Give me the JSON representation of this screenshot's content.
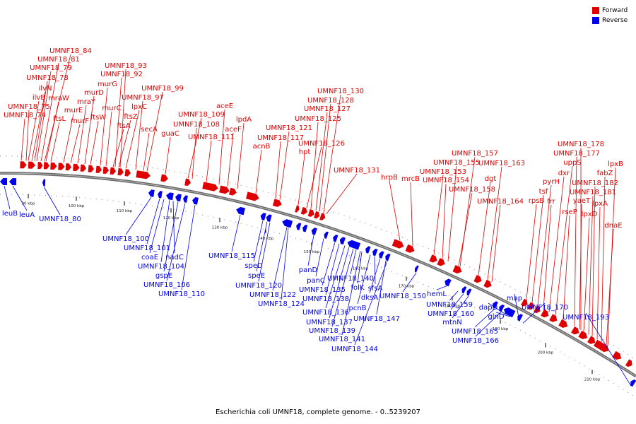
{
  "caption": "Escherichia coli UMNF18, complete genome. - 0..5239207",
  "legend": {
    "forward": {
      "label": "Forward",
      "color": "#e00000"
    },
    "reverse": {
      "label": "Reverse",
      "color": "#0000ee"
    }
  },
  "ticks": [
    "90 kbp",
    "100 kbp",
    "110 kbp",
    "120 kbp",
    "130 kbp",
    "140 kbp",
    "150 kbp",
    "160 kbp",
    "170 kbp",
    "180 kbp",
    "190 kbp",
    "200 kbp",
    "210 kbp"
  ],
  "forward_genes": [
    "UMNF18_84",
    "UMNF18_81",
    "UMNF18_79",
    "UMNF18_78",
    "ilvN",
    "ilvB",
    "mraW",
    "UMNF18_75",
    "UMNF18_74",
    "ftsL",
    "murE",
    "murF",
    "mraY",
    "murD",
    "ftsW",
    "murG",
    "murC",
    "ftsA",
    "ftsZ",
    "lpxC",
    "UMNF18_93",
    "UMNF18_92",
    "UMNF18_99",
    "UMNF18_97",
    "secA",
    "guaC",
    "UMNF18_109",
    "UMNF18_108",
    "UMNF18_111",
    "aceE",
    "aceF",
    "lpdA",
    "acnB",
    "UMNF18_121",
    "UMNF18_117",
    "hpt",
    "UMNF18_126",
    "UMNF18_125",
    "UMNF18_127",
    "UMNF18_128",
    "UMNF18_130",
    "UMNF18_131",
    "hrpB",
    "mrcB",
    "UMNF18_153",
    "UMNF18_154",
    "UMNF18_155",
    "UMNF18_157",
    "UMNF18_158",
    "dgt",
    "UMNF18_163",
    "UMNF18_164",
    "rpsB",
    "tsf",
    "pyrH",
    "frr",
    "dxr",
    "uppS",
    "rseP",
    "UMNF18_177",
    "UMNF18_178",
    "yaeT",
    "lpxD",
    "UMNF18_181",
    "UMNF18_182",
    "lpxA",
    "fabZ",
    "lpxB",
    "dnaE"
  ],
  "reverse_genes": [
    "leuB",
    "leuA",
    "UMNF18_80",
    "UMNF18_100",
    "UMNF18_101",
    "coaE",
    "nadC",
    "UMNF18_104",
    "gspE",
    "UMNF18_106",
    "UMNF18_110",
    "UMNF18_115",
    "speD",
    "speE",
    "UMNF18_120",
    "UMNF18_122",
    "UMNF18_124",
    "panD",
    "panC",
    "UMNF18_135",
    "UMNF18_138",
    "UMNF18_136",
    "UMNF18_137",
    "UMNF18_139",
    "UMNF18_140",
    "folK",
    "sfsA",
    "dksA",
    "pcnB",
    "UMNF18_141",
    "UMNF18_144",
    "UMNF18_147",
    "UMNF18_150",
    "hemL",
    "UMNF18_159",
    "UMNF18_160",
    "mtnN",
    "UMNF18_165",
    "UMNF18_166",
    "dapD",
    "glnD",
    "map",
    "UMNF18_170",
    "UMNF18_193"
  ]
}
